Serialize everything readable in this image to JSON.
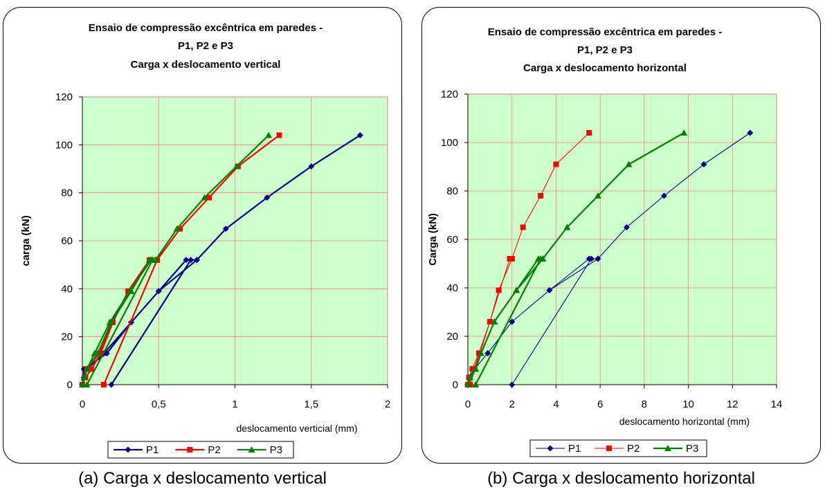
{
  "captions": {
    "a": "(a) Carga x deslocamento vertical",
    "b": "(b) Carga x deslocamento horizontal"
  },
  "chart_data": [
    {
      "type": "line",
      "title": [
        "Ensaio de compressão excêntrica em paredes -",
        "P1, P2 e P3",
        "Carga x deslocamento vertical"
      ],
      "xlabel": "deslocamento verticial (mm)",
      "ylabel": "carga (kN)",
      "xlim": [
        0,
        2
      ],
      "ylim": [
        0,
        120
      ],
      "xticks": [
        0,
        0.5,
        1,
        1.5,
        2
      ],
      "xtick_labels": [
        "0",
        "0,5",
        "1",
        "1,5",
        "2"
      ],
      "yticks": [
        0,
        20,
        40,
        60,
        80,
        100,
        120
      ],
      "ytick_labels": [
        "0",
        "20",
        "40",
        "60",
        "80",
        "100",
        "120"
      ],
      "grid": true,
      "plot_background": "#ccffcc",
      "legend_position": "bottom",
      "series": [
        {
          "name": "P1",
          "color": "#000080",
          "marker": "diamond",
          "lineWidth": 2.2,
          "points": [
            [
              0.19,
              0
            ],
            [
              0.71,
              52
            ],
            [
              0.75,
              52
            ],
            [
              0.5,
              39
            ],
            [
              0.32,
              26
            ],
            [
              0.14,
              13
            ],
            [
              0.03,
              6.5
            ],
            [
              0,
              0
            ],
            [
              0.01,
              3
            ],
            [
              0.01,
              6.5
            ],
            [
              0.16,
              13
            ],
            [
              0.32,
              26
            ],
            [
              0.5,
              39
            ],
            [
              0.68,
              52
            ],
            [
              0.75,
              52
            ],
            [
              0.94,
              65
            ],
            [
              1.21,
              78
            ],
            [
              1.5,
              91
            ],
            [
              1.82,
              104
            ]
          ]
        },
        {
          "name": "P2",
          "color": "#ff0000",
          "marker": "square",
          "lineWidth": 2.2,
          "points": [
            [
              0.14,
              0
            ],
            [
              0.49,
              52
            ],
            [
              0.45,
              52
            ],
            [
              0.31,
              39
            ],
            [
              0.19,
              26
            ],
            [
              0.11,
              13
            ],
            [
              0.03,
              6.5
            ],
            [
              0,
              0
            ],
            [
              0.02,
              3
            ],
            [
              0.06,
              6.5
            ],
            [
              0.12,
              13
            ],
            [
              0.2,
              26
            ],
            [
              0.3,
              39
            ],
            [
              0.44,
              52
            ],
            [
              0.49,
              52
            ],
            [
              0.64,
              65
            ],
            [
              0.83,
              78
            ],
            [
              1.02,
              91
            ],
            [
              1.29,
              104
            ]
          ]
        },
        {
          "name": "P3",
          "color": "#008000",
          "marker": "triangle",
          "lineWidth": 2.2,
          "points": [
            [
              0.03,
              0
            ],
            [
              0.46,
              52
            ],
            [
              0.44,
              52
            ],
            [
              0.32,
              39
            ],
            [
              0.19,
              26
            ],
            [
              0.1,
              13
            ],
            [
              0.03,
              6.5
            ],
            [
              0,
              0
            ],
            [
              0.01,
              3
            ],
            [
              0.03,
              6.5
            ],
            [
              0.08,
              13
            ],
            [
              0.18,
              26
            ],
            [
              0.31,
              39
            ],
            [
              0.45,
              52
            ],
            [
              0.48,
              52
            ],
            [
              0.62,
              65
            ],
            [
              0.8,
              78
            ],
            [
              1.01,
              91
            ],
            [
              1.22,
              104
            ]
          ]
        }
      ]
    },
    {
      "type": "line",
      "title": [
        "Ensaio de compressão excêntrica em paredes -",
        "P1, P2 e P3",
        "Carga x deslocamento horizontal"
      ],
      "xlabel": "deslocamento horizontal (mm)",
      "ylabel": "Carga (kN)",
      "xlim": [
        0,
        14
      ],
      "ylim": [
        0,
        120
      ],
      "xticks": [
        0,
        2,
        4,
        6,
        8,
        10,
        12,
        14
      ],
      "xtick_labels": [
        "0",
        "2",
        "4",
        "6",
        "8",
        "10",
        "12",
        "14"
      ],
      "yticks": [
        0,
        20,
        40,
        60,
        80,
        100,
        120
      ],
      "ytick_labels": [
        "0",
        "20",
        "40",
        "60",
        "80",
        "100",
        "120"
      ],
      "grid": true,
      "plot_background": "#ccffcc",
      "legend_position": "bottom",
      "series": [
        {
          "name": "P1",
          "color": "#000080",
          "marker": "diamond",
          "lineWidth": 1.1,
          "points": [
            [
              2,
              0
            ],
            [
              5.6,
              52
            ],
            [
              5.9,
              52
            ],
            [
              3.7,
              39
            ],
            [
              2,
              26
            ],
            [
              0.9,
              13
            ],
            [
              0.3,
              6.5
            ],
            [
              0,
              0
            ],
            [
              0.05,
              3
            ],
            [
              0.3,
              6.5
            ],
            [
              0.9,
              13
            ],
            [
              2,
              26
            ],
            [
              3.7,
              39
            ],
            [
              5.5,
              52
            ],
            [
              5.9,
              52
            ],
            [
              7.2,
              65
            ],
            [
              8.9,
              78
            ],
            [
              10.7,
              91
            ],
            [
              12.8,
              104
            ]
          ]
        },
        {
          "name": "P2",
          "color": "#ff0000",
          "marker": "square",
          "lineWidth": 1.1,
          "points": [
            [
              0.1,
              0
            ],
            [
              1.9,
              52
            ],
            [
              2,
              52
            ],
            [
              1.4,
              39
            ],
            [
              1,
              26
            ],
            [
              0.5,
              13
            ],
            [
              0.3,
              6.5
            ],
            [
              0,
              0
            ],
            [
              0.05,
              3
            ],
            [
              0.2,
              6.5
            ],
            [
              0.5,
              13
            ],
            [
              1,
              26
            ],
            [
              1.4,
              39
            ],
            [
              2,
              52
            ],
            [
              2.5,
              65
            ],
            [
              3.3,
              78
            ],
            [
              4,
              91
            ],
            [
              5.5,
              104
            ]
          ]
        },
        {
          "name": "P3",
          "color": "#008000",
          "marker": "triangle",
          "lineWidth": 2.2,
          "points": [
            [
              0.35,
              0
            ],
            [
              3.3,
              52
            ],
            [
              3.4,
              52
            ],
            [
              2.2,
              39
            ],
            [
              1.2,
              26
            ],
            [
              0.6,
              13
            ],
            [
              0.35,
              6.5
            ],
            [
              0,
              0
            ],
            [
              0.1,
              3
            ],
            [
              0.35,
              6.5
            ],
            [
              0.6,
              13
            ],
            [
              1.2,
              26
            ],
            [
              2.2,
              39
            ],
            [
              3.2,
              52
            ],
            [
              3.4,
              52
            ],
            [
              4.5,
              65
            ],
            [
              5.9,
              78
            ],
            [
              7.3,
              91
            ],
            [
              9.8,
              104
            ]
          ]
        }
      ]
    }
  ]
}
